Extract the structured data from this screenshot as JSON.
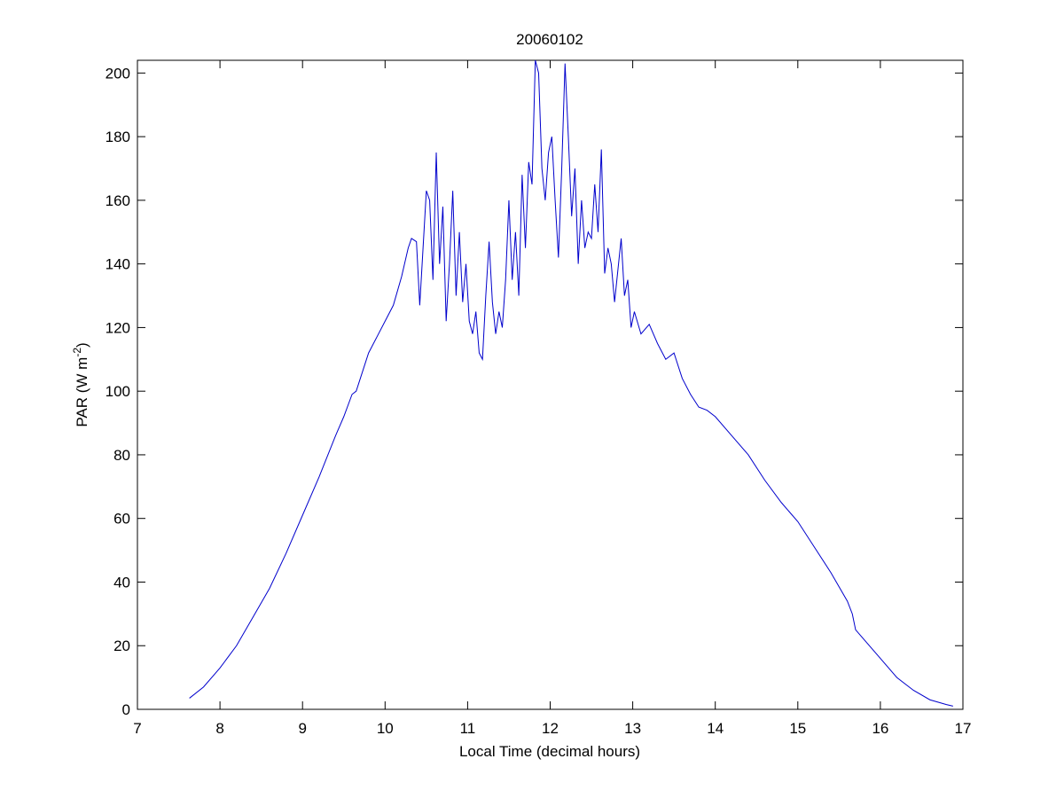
{
  "chart_data": {
    "type": "line",
    "title": "20060102",
    "xlabel": "Local Time (decimal hours)",
    "ylabel": {
      "text": "PAR (W m",
      "superscript": "-2",
      "suffix": ")"
    },
    "xlim": [
      7,
      17
    ],
    "xticks": [
      7,
      8,
      9,
      10,
      11,
      12,
      13,
      14,
      15,
      16,
      17
    ],
    "ylim": [
      0,
      204
    ],
    "yticks": [
      0,
      20,
      40,
      60,
      80,
      100,
      120,
      140,
      160,
      180,
      200
    ],
    "grid": false,
    "series": [
      {
        "color": "#0000cc",
        "x": [
          7.63,
          7.8,
          8.0,
          8.2,
          8.4,
          8.6,
          8.8,
          9.0,
          9.2,
          9.4,
          9.5,
          9.6,
          9.65,
          9.7,
          9.8,
          9.9,
          10.0,
          10.1,
          10.2,
          10.28,
          10.32,
          10.38,
          10.42,
          10.46,
          10.5,
          10.54,
          10.58,
          10.62,
          10.66,
          10.7,
          10.74,
          10.78,
          10.82,
          10.86,
          10.9,
          10.94,
          10.98,
          11.02,
          11.06,
          11.1,
          11.14,
          11.18,
          11.22,
          11.26,
          11.3,
          11.34,
          11.38,
          11.42,
          11.46,
          11.5,
          11.54,
          11.58,
          11.62,
          11.66,
          11.7,
          11.74,
          11.78,
          11.82,
          11.86,
          11.9,
          11.94,
          11.98,
          12.02,
          12.06,
          12.1,
          12.14,
          12.18,
          12.22,
          12.26,
          12.3,
          12.34,
          12.38,
          12.42,
          12.46,
          12.5,
          12.54,
          12.58,
          12.62,
          12.66,
          12.7,
          12.74,
          12.78,
          12.82,
          12.86,
          12.9,
          12.94,
          12.98,
          13.02,
          13.1,
          13.2,
          13.3,
          13.4,
          13.5,
          13.6,
          13.7,
          13.8,
          13.9,
          14.0,
          14.2,
          14.4,
          14.6,
          14.8,
          15.0,
          15.2,
          15.4,
          15.6,
          15.66,
          15.7,
          15.8,
          16.0,
          16.2,
          16.4,
          16.6,
          16.8,
          16.88
        ],
        "values": [
          3.5,
          7,
          13,
          20,
          29,
          38,
          49,
          61,
          73,
          86,
          92,
          99,
          100,
          104,
          112,
          117,
          122,
          127,
          136,
          145,
          148,
          147,
          127,
          145,
          163,
          160,
          135,
          175,
          140,
          158,
          122,
          140,
          163,
          130,
          150,
          128,
          140,
          122,
          118,
          125,
          112,
          110,
          130,
          147,
          128,
          118,
          125,
          120,
          135,
          160,
          135,
          150,
          130,
          168,
          145,
          172,
          165,
          204,
          200,
          170,
          160,
          175,
          180,
          160,
          142,
          170,
          203,
          180,
          155,
          170,
          140,
          160,
          145,
          150,
          148,
          165,
          150,
          176,
          137,
          145,
          140,
          128,
          138,
          148,
          130,
          135,
          120,
          125,
          118,
          121,
          115,
          110,
          112,
          104,
          99,
          95,
          94,
          92,
          86,
          80,
          72,
          65,
          59,
          51,
          43,
          34,
          30,
          25,
          22,
          16,
          10,
          6,
          3,
          1.5,
          1
        ]
      }
    ]
  }
}
